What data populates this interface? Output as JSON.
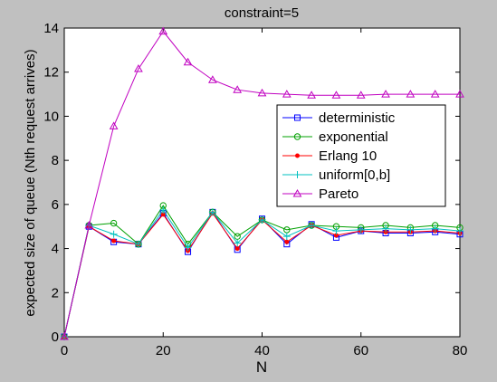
{
  "chart_data": {
    "type": "line",
    "title": "constraint=5",
    "xlabel": "N",
    "ylabel": "expected size of queue (Nth request arrives)",
    "xlim": [
      0,
      80
    ],
    "ylim": [
      0,
      14
    ],
    "xticks": [
      0,
      20,
      40,
      60,
      80
    ],
    "yticks": [
      0,
      2,
      4,
      6,
      8,
      10,
      12,
      14
    ],
    "grid": false,
    "legend_position": "right-center",
    "x": [
      0,
      5,
      10,
      15,
      20,
      25,
      30,
      35,
      40,
      45,
      50,
      55,
      60,
      65,
      70,
      75,
      80
    ],
    "series": [
      {
        "name": "deterministic",
        "color": "#0000ff",
        "marker": "square",
        "values": [
          0,
          5.0,
          4.3,
          4.2,
          5.6,
          3.85,
          5.65,
          3.95,
          5.35,
          4.2,
          5.1,
          4.5,
          4.8,
          4.7,
          4.7,
          4.75,
          4.65
        ]
      },
      {
        "name": "exponential",
        "color": "#00a000",
        "marker": "circle",
        "values": [
          0,
          5.05,
          5.15,
          4.2,
          5.95,
          4.2,
          5.65,
          4.55,
          5.3,
          4.85,
          5.05,
          5.0,
          4.95,
          5.05,
          4.95,
          5.05,
          4.95
        ]
      },
      {
        "name": "Erlang 10",
        "color": "#ff0000",
        "marker": "dot",
        "values": [
          0,
          5.0,
          4.35,
          4.2,
          5.55,
          3.9,
          5.6,
          4.0,
          5.3,
          4.3,
          5.05,
          4.6,
          4.8,
          4.75,
          4.75,
          4.8,
          4.7
        ]
      },
      {
        "name": "uniform[0,b]",
        "color": "#00c0c0",
        "marker": "plus",
        "values": [
          0,
          5.05,
          4.65,
          4.2,
          5.75,
          4.05,
          5.65,
          4.25,
          5.3,
          4.55,
          5.05,
          4.8,
          4.85,
          4.9,
          4.85,
          4.9,
          4.8
        ]
      },
      {
        "name": "Pareto",
        "color": "#c000c0",
        "marker": "triangle",
        "values": [
          0,
          5.05,
          9.55,
          12.15,
          13.85,
          12.45,
          11.65,
          11.2,
          11.05,
          11.0,
          10.95,
          10.95,
          10.95,
          11.0,
          11.0,
          11.0,
          11.0
        ]
      }
    ]
  }
}
